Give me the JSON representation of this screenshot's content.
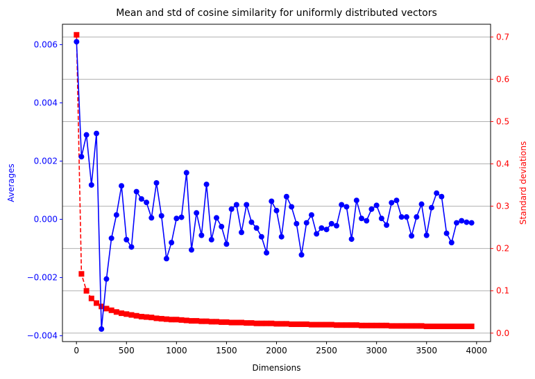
{
  "chart_data": {
    "type": "line",
    "title": "Mean and std of cosine similarity for uniformly distributed vectors",
    "xlabel": "Dimensions",
    "ylabel_left": "Averages",
    "ylabel_right": "Standard deviations",
    "xlim": [
      -140,
      4140
    ],
    "ylim_left": [
      -0.0042,
      0.0067
    ],
    "ylim_right": [
      -0.02,
      0.73
    ],
    "x_ticks": [
      0,
      500,
      1000,
      1500,
      2000,
      2500,
      3000,
      3500,
      4000
    ],
    "x_tick_labels": [
      "0",
      "500",
      "1000",
      "1500",
      "2000",
      "2500",
      "3000",
      "3500",
      "4000"
    ],
    "y_left_ticks": [
      -0.004,
      -0.002,
      0.0,
      0.002,
      0.004,
      0.006
    ],
    "y_left_tick_labels": [
      "−0.004",
      "−0.002",
      "0.000",
      "0.002",
      "0.004",
      "0.006"
    ],
    "y_right_ticks": [
      0.0,
      0.1,
      0.2,
      0.3,
      0.4,
      0.5,
      0.6,
      0.7
    ],
    "y_right_tick_labels": [
      "0.0",
      "0.1",
      "0.2",
      "0.3",
      "0.4",
      "0.5",
      "0.6",
      "0.7"
    ],
    "grid": "right-axis horizontal",
    "x": [
      1,
      50,
      100,
      150,
      200,
      250,
      300,
      350,
      400,
      450,
      500,
      550,
      600,
      650,
      700,
      750,
      800,
      850,
      900,
      950,
      1000,
      1050,
      1100,
      1150,
      1200,
      1250,
      1300,
      1350,
      1400,
      1450,
      1500,
      1550,
      1600,
      1650,
      1700,
      1750,
      1800,
      1850,
      1900,
      1950,
      2000,
      2050,
      2100,
      2150,
      2200,
      2250,
      2300,
      2350,
      2400,
      2450,
      2500,
      2550,
      2600,
      2650,
      2700,
      2750,
      2800,
      2850,
      2900,
      2950,
      3000,
      3050,
      3100,
      3150,
      3200,
      3250,
      3300,
      3350,
      3400,
      3450,
      3500,
      3550,
      3600,
      3650,
      3700,
      3750,
      3800,
      3850,
      3900,
      3950
    ],
    "series": [
      {
        "name": "Averages",
        "axis": "left",
        "color": "#0000ff",
        "marker": "circle",
        "linestyle": "solid",
        "values": [
          0.0061,
          0.00215,
          0.0029,
          0.00118,
          0.00295,
          -0.00377,
          -0.00205,
          -0.00065,
          0.00015,
          0.00115,
          -0.0007,
          -0.00095,
          0.00095,
          0.0007,
          0.00058,
          5e-05,
          0.00125,
          0.00012,
          -0.00135,
          -0.0008,
          3e-05,
          7e-05,
          0.0016,
          -0.00105,
          0.00022,
          -0.00055,
          0.0012,
          -0.0007,
          5e-05,
          -0.00025,
          -0.00085,
          0.00035,
          0.0005,
          -0.00045,
          0.0005,
          -0.0001,
          -0.0003,
          -0.0006,
          -0.00115,
          0.00062,
          0.0003,
          -0.0006,
          0.00078,
          0.00043,
          -0.00015,
          -0.00122,
          -0.00012,
          0.00015,
          -0.0005,
          -0.0003,
          -0.00035,
          -0.00015,
          -0.00022,
          0.0005,
          0.00043,
          -0.00068,
          0.00065,
          3e-05,
          -5e-05,
          0.00035,
          0.00048,
          3e-05,
          -0.0002,
          0.00057,
          0.00065,
          8e-05,
          8e-05,
          -0.00057,
          8e-05,
          0.00052,
          -0.00055,
          0.0004,
          0.0009,
          0.00078,
          -0.00048,
          -0.0008,
          -0.00012,
          -5e-05,
          -0.0001,
          -0.00012
        ]
      },
      {
        "name": "Standard deviations",
        "axis": "right",
        "color": "#ff0000",
        "marker": "square",
        "linestyle": "dashed",
        "values": [
          0.705,
          0.14,
          0.1,
          0.082,
          0.071,
          0.063,
          0.058,
          0.054,
          0.05,
          0.047,
          0.045,
          0.043,
          0.041,
          0.039,
          0.038,
          0.037,
          0.035,
          0.034,
          0.033,
          0.032,
          0.032,
          0.031,
          0.03,
          0.029,
          0.029,
          0.028,
          0.028,
          0.027,
          0.027,
          0.026,
          0.026,
          0.025,
          0.025,
          0.025,
          0.024,
          0.024,
          0.023,
          0.023,
          0.023,
          0.023,
          0.022,
          0.022,
          0.022,
          0.021,
          0.021,
          0.021,
          0.021,
          0.02,
          0.02,
          0.02,
          0.02,
          0.02,
          0.019,
          0.019,
          0.019,
          0.019,
          0.019,
          0.018,
          0.018,
          0.018,
          0.018,
          0.018,
          0.018,
          0.017,
          0.017,
          0.017,
          0.017,
          0.017,
          0.017,
          0.017,
          0.016,
          0.016,
          0.016,
          0.016,
          0.016,
          0.016,
          0.016,
          0.016,
          0.016,
          0.016
        ]
      }
    ]
  }
}
